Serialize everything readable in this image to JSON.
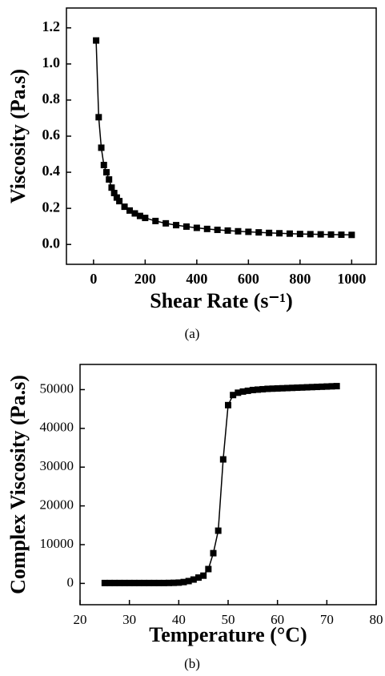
{
  "chart_data": [
    {
      "type": "line",
      "caption": "(a)",
      "x_label": "Shear Rate (s⁻¹)",
      "y_label": "Viscosity (Pa.s)",
      "color": "#000000",
      "marker": "square",
      "x": [
        10,
        20,
        30,
        40,
        50,
        60,
        70,
        80,
        90,
        100,
        120,
        140,
        160,
        180,
        200,
        240,
        280,
        320,
        360,
        400,
        440,
        480,
        520,
        560,
        600,
        640,
        680,
        720,
        760,
        800,
        840,
        880,
        920,
        960,
        1000
      ],
      "values": [
        1.13,
        0.705,
        0.536,
        0.44,
        0.4,
        0.36,
        0.315,
        0.285,
        0.26,
        0.24,
        0.209,
        0.188,
        0.172,
        0.158,
        0.147,
        0.13,
        0.117,
        0.107,
        0.099,
        0.092,
        0.086,
        0.081,
        0.077,
        0.073,
        0.07,
        0.067,
        0.064,
        0.062,
        0.06,
        0.058,
        0.057,
        0.056,
        0.055,
        0.054,
        0.053
      ],
      "xlim": [
        -105,
        1095
      ],
      "ylim": [
        -0.11,
        1.31
      ],
      "xticks": [
        0,
        200,
        400,
        600,
        800,
        1000
      ],
      "yticks": [
        {
          "value": 0,
          "label": "0.0"
        },
        0.2,
        0.4,
        0.6,
        0.8,
        {
          "value": 1,
          "label": "1.0"
        },
        1.2
      ]
    },
    {
      "type": "line",
      "caption": "(b)",
      "x_label": "Temperature (°C)",
      "y_label": "Complex Viscosity (Pa.s)",
      "color": "#000000",
      "marker": "square",
      "x": [
        25,
        26,
        27,
        28,
        29,
        30,
        31,
        32,
        33,
        34,
        35,
        36,
        37,
        38,
        39,
        40,
        41,
        42,
        43,
        44,
        45,
        46,
        47,
        48,
        49,
        50,
        51,
        52,
        53,
        54,
        55,
        56,
        57,
        58,
        59,
        60,
        61,
        62,
        63,
        64,
        65,
        66,
        67,
        68,
        69,
        70,
        71,
        72
      ],
      "values": [
        100,
        100,
        100,
        100,
        100,
        100,
        100,
        100,
        100,
        100,
        100,
        100,
        100,
        120,
        150,
        200,
        350,
        600,
        1000,
        1500,
        2000,
        3700,
        7800,
        13600,
        32000,
        46000,
        48600,
        49200,
        49500,
        49700,
        49900,
        50000,
        50100,
        50200,
        50250,
        50300,
        50350,
        50400,
        50450,
        50500,
        50550,
        50600,
        50650,
        50700,
        50750,
        50800,
        50850,
        50900
      ],
      "xlim": [
        20,
        80
      ],
      "ylim": [
        -5500,
        56500
      ],
      "xticks": [
        20,
        30,
        40,
        50,
        60,
        70,
        80
      ],
      "yticks": [
        0,
        10000,
        20000,
        30000,
        40000,
        50000
      ]
    }
  ]
}
